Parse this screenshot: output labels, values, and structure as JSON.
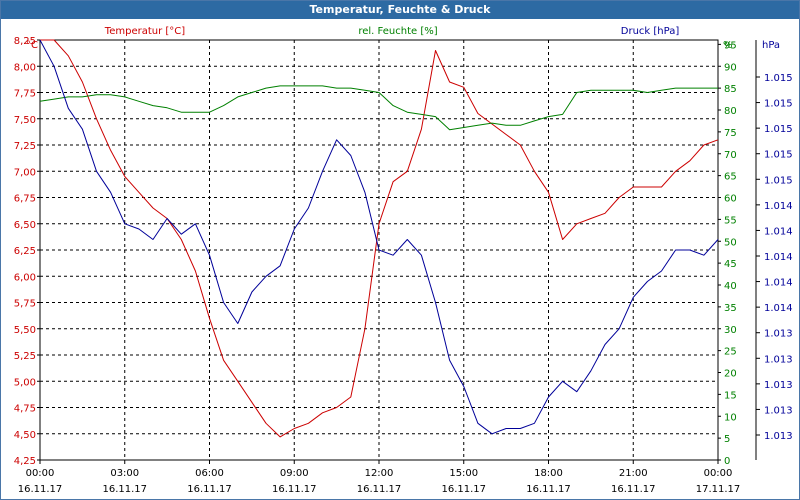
{
  "window": {
    "title": "Temperatur, Feuchte & Druck"
  },
  "chart_data": {
    "type": "line",
    "title": "Temperatur, Feuchte & Druck",
    "x_labels": [
      {
        "time": "00:00",
        "date": "16.11.17"
      },
      {
        "time": "03:00",
        "date": "16.11.17"
      },
      {
        "time": "06:00",
        "date": "16.11.17"
      },
      {
        "time": "09:00",
        "date": "16.11.17"
      },
      {
        "time": "12:00",
        "date": "16.11.17"
      },
      {
        "time": "15:00",
        "date": "16.11.17"
      },
      {
        "time": "18:00",
        "date": "16.11.17"
      },
      {
        "time": "21:00",
        "date": "16.11.17"
      },
      {
        "time": "00:00",
        "date": "17.11.17"
      }
    ],
    "xlim_hours": [
      0,
      24
    ],
    "grid": true,
    "axes": {
      "left": {
        "unit": "°C",
        "color": "#cc0000",
        "ylim": [
          4.25,
          8.25
        ],
        "ticks": [
          "4,25",
          "4,50",
          "4,75",
          "5,00",
          "5,25",
          "5,50",
          "5,75",
          "6,00",
          "6,25",
          "6,50",
          "6,75",
          "7,00",
          "7,25",
          "7,50",
          "7,75",
          "8,00",
          "8,25"
        ]
      },
      "middle": {
        "unit": "%",
        "color": "#008000",
        "ylim": [
          0,
          96
        ],
        "ticks": [
          "0",
          "5",
          "10",
          "15",
          "20",
          "25",
          "30",
          "35",
          "40",
          "45",
          "50",
          "55",
          "60",
          "65",
          "70",
          "75",
          "80",
          "85",
          "90",
          "95"
        ]
      },
      "right": {
        "unit": "hPa",
        "color": "#000099",
        "ticks": [
          "1.013",
          "1.013",
          "1.013",
          "1.013",
          "1.013",
          "1.014",
          "1.014",
          "1.014",
          "1.014",
          "1.014",
          "1.015",
          "1.015",
          "1.015",
          "1.015",
          "1.015"
        ]
      }
    },
    "series": [
      {
        "name": "Temperatur [°C]",
        "color": "#cc0000",
        "axis": "left",
        "x": [
          0,
          0.5,
          1,
          1.5,
          2,
          2.5,
          3,
          3.5,
          4,
          4.5,
          5,
          5.5,
          6,
          6.5,
          7,
          7.5,
          8,
          8.5,
          9,
          9.5,
          10,
          10.5,
          11,
          11.5,
          12,
          12.5,
          13,
          13.5,
          14,
          14.5,
          15,
          15.5,
          16,
          16.5,
          17,
          17.5,
          18,
          18.5,
          19,
          19.5,
          20,
          20.5,
          21,
          21.5,
          22,
          22.5,
          23,
          23.5,
          24
        ],
        "values": [
          8.3,
          8.25,
          8.1,
          7.85,
          7.5,
          7.2,
          6.95,
          6.8,
          6.65,
          6.55,
          6.35,
          6.05,
          5.6,
          5.2,
          5.0,
          4.8,
          4.6,
          4.47,
          4.55,
          4.6,
          4.7,
          4.75,
          4.85,
          5.5,
          6.5,
          6.9,
          7.0,
          7.4,
          8.15,
          7.85,
          7.8,
          7.55,
          7.45,
          7.35,
          7.25,
          7.0,
          6.8,
          6.35,
          6.5,
          6.55,
          6.6,
          6.75,
          6.85,
          6.85,
          6.85,
          7.0,
          7.1,
          7.25,
          7.3
        ]
      },
      {
        "name": "rel. Feuchte [%]",
        "color": "#008000",
        "axis": "middle",
        "x": [
          0,
          0.5,
          1,
          1.5,
          2,
          2.5,
          3,
          3.5,
          4,
          4.5,
          5,
          5.5,
          6,
          6.5,
          7,
          7.5,
          8,
          8.5,
          9,
          9.5,
          10,
          10.5,
          11,
          11.5,
          12,
          12.5,
          13,
          13.5,
          14,
          14.5,
          15,
          15.5,
          16,
          16.5,
          17,
          17.5,
          18,
          18.5,
          19,
          19.5,
          20,
          20.5,
          21,
          21.5,
          22,
          22.5,
          23,
          23.5,
          24
        ],
        "values": [
          82,
          82.5,
          83,
          83,
          83.5,
          83.5,
          83,
          82,
          81,
          80.5,
          79.5,
          79.5,
          79.5,
          81,
          83,
          84,
          85,
          85.5,
          85.5,
          85.5,
          85.5,
          85,
          85,
          84.5,
          84,
          81,
          79.5,
          79,
          78.5,
          75.5,
          76,
          76.5,
          77,
          76.5,
          76.5,
          77.5,
          78.5,
          79,
          84,
          84.5,
          84.5,
          84.5,
          84.5,
          84,
          84.5,
          85,
          85,
          85,
          85
        ]
      },
      {
        "name": "Druck [hPa]",
        "color": "#000099",
        "axis": "right",
        "x": [
          0,
          0.5,
          1,
          1.5,
          2,
          2.5,
          3,
          3.5,
          4,
          4.5,
          5,
          5.5,
          6,
          6.5,
          7,
          7.5,
          8,
          8.5,
          9,
          9.5,
          10,
          10.5,
          11,
          11.5,
          12,
          12.5,
          13,
          13.5,
          14,
          14.5,
          15,
          15.5,
          16,
          16.5,
          17,
          17.5,
          18,
          18.5,
          19,
          19.5,
          20,
          20.5,
          21,
          21.5,
          22,
          22.5,
          23,
          23.5,
          24
        ],
        "values": [
          8.3,
          8.0,
          7.6,
          7.4,
          7.0,
          6.8,
          6.5,
          6.45,
          6.35,
          6.55,
          6.4,
          6.5,
          6.2,
          5.75,
          5.55,
          5.85,
          6.0,
          6.1,
          6.45,
          6.65,
          7.0,
          7.3,
          7.15,
          6.8,
          6.25,
          6.2,
          6.35,
          6.2,
          5.75,
          5.2,
          4.95,
          4.6,
          4.5,
          4.55,
          4.55,
          4.6,
          4.85,
          5.0,
          4.9,
          5.1,
          5.35,
          5.5,
          5.8,
          5.95,
          6.05,
          6.25,
          6.25,
          6.2,
          6.35
        ]
      }
    ]
  }
}
